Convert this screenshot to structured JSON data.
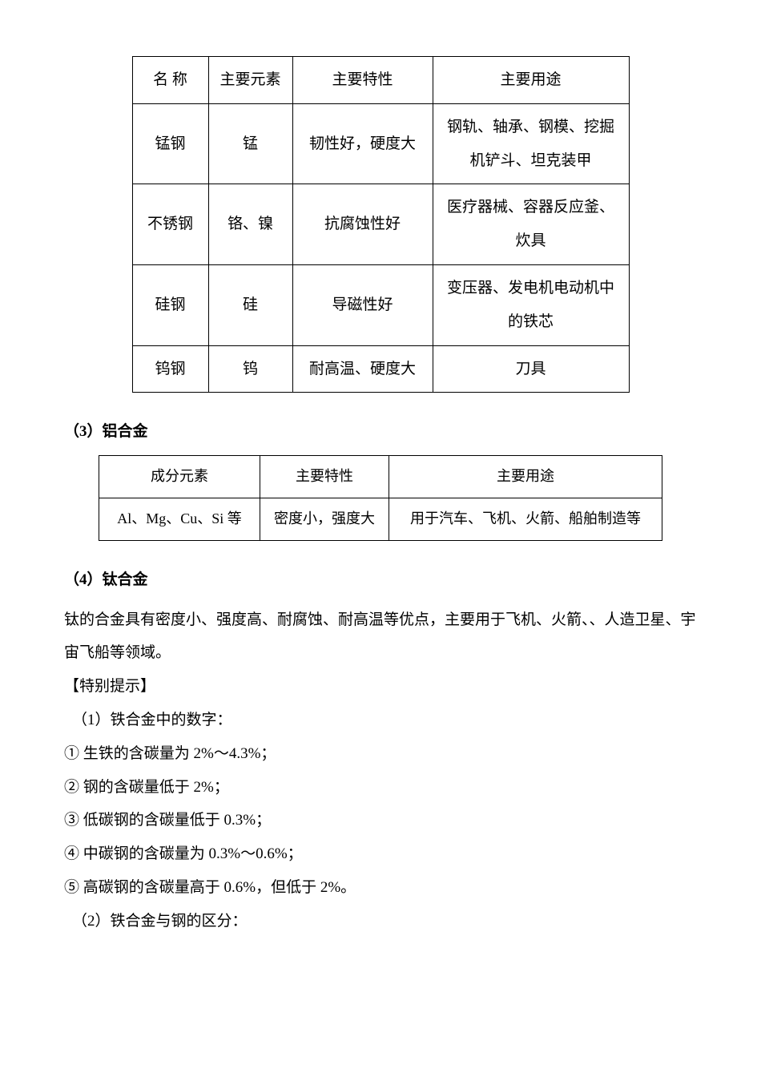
{
  "table1": {
    "headers": [
      "名 称",
      "主要元素",
      "主要特性",
      "主要用途"
    ],
    "rows": [
      [
        "锰钢",
        "锰",
        "韧性好，硬度大",
        "钢轨、轴承、钢模、挖掘机铲斗、坦克装甲"
      ],
      [
        "不锈钢",
        "铬、镍",
        "抗腐蚀性好",
        "医疗器械、容器反应釜、炊具"
      ],
      [
        "硅钢",
        "硅",
        "导磁性好",
        "变压器、发电机电动机中的铁芯"
      ],
      [
        "钨钢",
        "钨",
        "耐高温、硬度大",
        "刀具"
      ]
    ]
  },
  "section3": "（3）铝合金",
  "table2": {
    "headers": [
      "成分元素",
      "主要特性",
      "主要用途"
    ],
    "rows": [
      [
        "Al、Mg、Cu、Si 等",
        "密度小，强度大",
        "用于汽车、飞机、火箭、船舶制造等"
      ]
    ]
  },
  "section4": "（4）钛合金",
  "ti_text": "钛的合金具有密度小、强度高、耐腐蚀、耐高温等优点，主要用于飞机、火箭、、人造卫星、宇宙飞船等领域。",
  "tip_heading": "【特别提示】",
  "tip1": "（1）铁合金中的数字：",
  "tip1_1": "① 生铁的含碳量为 2%～4.3%；",
  "tip1_2": "② 钢的含碳量低于 2%；",
  "tip1_3": "③ 低碳钢的含碳量低于 0.3%；",
  "tip1_4": "④ 中碳钢的含碳量为 0.3%～0.6%；",
  "tip1_5": "⑤ 高碳钢的含碳量高于 0.6%，但低于 2%。",
  "tip2": "（2）铁合金与钢的区分："
}
